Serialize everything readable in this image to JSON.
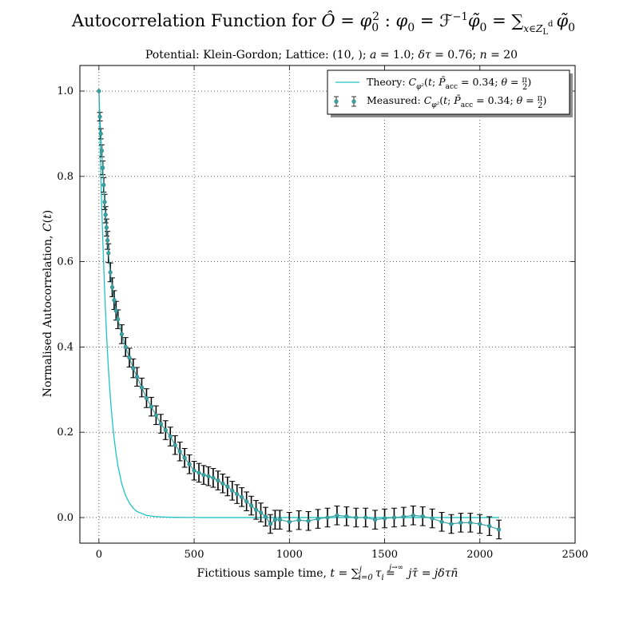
{
  "chart_data": {
    "type": "line",
    "title": "Autocorrelation Function for Ô = φ₀²: φ₀ = ℱ⁻¹φ̃₀ = ∑ₓ∈Z_L^d φ̃₀",
    "subtitle": "Potential: Klein-Gordon; Lattice: (10, ); a = 1.0; δτ = 0.76; n = 20",
    "xlabel": "Fictitious sample time, t = ∑ᵢ₌₀ʲ τᵢ ≐(j→∞) jτ̄ = jδτn̄",
    "ylabel": "Normalised Autocorrelation, C(t)",
    "xlim": [
      -100,
      2500
    ],
    "ylim": [
      -0.06,
      1.06
    ],
    "xticks": [
      0,
      500,
      1000,
      1500,
      2000,
      2500
    ],
    "yticks": [
      0.0,
      0.2,
      0.4,
      0.6,
      0.8,
      1.0
    ],
    "xtick_labels": [
      "0",
      "500",
      "1000",
      "1500",
      "2000",
      "2500"
    ],
    "ytick_labels": [
      "0.0",
      "0.2",
      "0.4",
      "0.6",
      "0.8",
      "1.0"
    ],
    "grid": true,
    "legend_position": "top-right",
    "colors": {
      "theory": "#1fc4c4",
      "measured": "#3aa3a3",
      "errorbar": "#000000"
    },
    "series": [
      {
        "name": "Theory: C_φ²(t; P̄acc = 0.34; θ = π/2)",
        "type": "line",
        "x": [
          0,
          10,
          20,
          30,
          40,
          50,
          60,
          70,
          80,
          90,
          100,
          120,
          140,
          160,
          180,
          200,
          250,
          300,
          350,
          400,
          500,
          600,
          800,
          1000,
          1500,
          2000,
          2100
        ],
        "y": [
          1.0,
          0.8,
          0.656,
          0.531,
          0.43,
          0.348,
          0.282,
          0.228,
          0.185,
          0.15,
          0.121,
          0.079,
          0.052,
          0.034,
          0.022,
          0.014,
          0.005,
          0.002,
          0.001,
          0.0005,
          0.0001,
          0.0,
          0.0,
          0.0,
          0.0,
          0.0,
          0.0
        ]
      },
      {
        "name": "Measured: C_φ²(t; P̄acc = 0.34; θ = π/2)",
        "type": "errorbar",
        "x": [
          0,
          5,
          10,
          15,
          20,
          25,
          30,
          35,
          40,
          45,
          50,
          60,
          70,
          80,
          90,
          100,
          120,
          140,
          160,
          180,
          200,
          225,
          250,
          275,
          300,
          325,
          350,
          375,
          400,
          425,
          450,
          475,
          500,
          525,
          550,
          575,
          600,
          625,
          650,
          675,
          700,
          725,
          750,
          775,
          800,
          825,
          850,
          875,
          900,
          925,
          950,
          1000,
          1050,
          1100,
          1150,
          1200,
          1250,
          1300,
          1350,
          1400,
          1450,
          1500,
          1550,
          1600,
          1650,
          1700,
          1750,
          1800,
          1850,
          1900,
          1950,
          2000,
          2050,
          2100
        ],
        "y": [
          1.0,
          0.94,
          0.9,
          0.86,
          0.82,
          0.78,
          0.74,
          0.71,
          0.68,
          0.65,
          0.62,
          0.575,
          0.54,
          0.51,
          0.485,
          0.465,
          0.43,
          0.4,
          0.375,
          0.35,
          0.33,
          0.305,
          0.28,
          0.26,
          0.24,
          0.22,
          0.205,
          0.19,
          0.17,
          0.155,
          0.14,
          0.125,
          0.11,
          0.105,
          0.1,
          0.097,
          0.093,
          0.087,
          0.08,
          0.073,
          0.063,
          0.055,
          0.048,
          0.038,
          0.028,
          0.018,
          0.012,
          0.002,
          -0.015,
          -0.005,
          -0.005,
          -0.01,
          -0.006,
          -0.008,
          -0.003,
          0.0,
          0.005,
          0.003,
          0.0,
          0.0,
          -0.005,
          -0.002,
          0.0,
          0.002,
          0.005,
          0.003,
          -0.002,
          -0.01,
          -0.015,
          -0.012,
          -0.012,
          -0.015,
          -0.02,
          -0.028
        ],
        "yerr": [
          0.0,
          0.01,
          0.012,
          0.014,
          0.016,
          0.017,
          0.018,
          0.019,
          0.02,
          0.021,
          0.022,
          0.022,
          0.022,
          0.022,
          0.022,
          0.022,
          0.022,
          0.022,
          0.022,
          0.022,
          0.022,
          0.022,
          0.022,
          0.022,
          0.022,
          0.022,
          0.022,
          0.022,
          0.022,
          0.022,
          0.022,
          0.022,
          0.022,
          0.022,
          0.022,
          0.022,
          0.022,
          0.022,
          0.022,
          0.022,
          0.022,
          0.022,
          0.022,
          0.022,
          0.022,
          0.022,
          0.022,
          0.022,
          0.022,
          0.022,
          0.022,
          0.022,
          0.022,
          0.022,
          0.022,
          0.022,
          0.022,
          0.022,
          0.022,
          0.022,
          0.022,
          0.022,
          0.022,
          0.022,
          0.022,
          0.022,
          0.022,
          0.022,
          0.022,
          0.022,
          0.022,
          0.022,
          0.022,
          0.022
        ]
      }
    ]
  }
}
